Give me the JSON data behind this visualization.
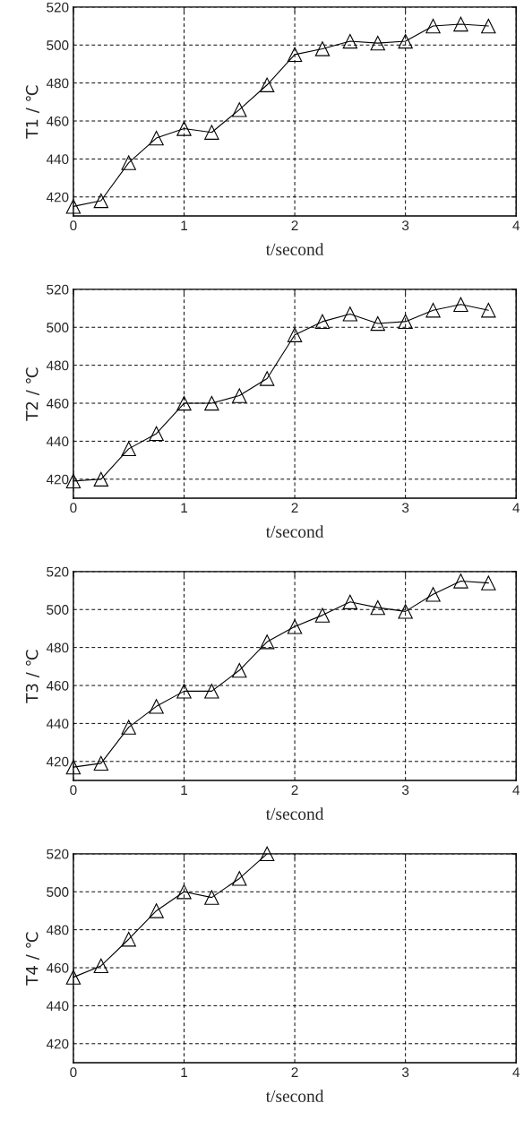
{
  "chart_data": [
    {
      "type": "line",
      "ylabel": "T1 / ℃",
      "xlabel": "t/second",
      "marker": "triangle",
      "line_style": "solid",
      "grid": true,
      "xlim": [
        0,
        4
      ],
      "xticks": [
        0,
        1,
        2,
        3,
        4
      ],
      "ylim": [
        410,
        520
      ],
      "yticks": [
        420,
        440,
        460,
        480,
        500,
        520
      ],
      "x": [
        0,
        0.25,
        0.5,
        0.75,
        1,
        1.25,
        1.5,
        1.75,
        2,
        2.25,
        2.5,
        2.75,
        3,
        3.25,
        3.5,
        3.75
      ],
      "series": [
        {
          "color": "#000000",
          "values": [
            415,
            418,
            438,
            451,
            456,
            454,
            466,
            479,
            495,
            498,
            502,
            501,
            502,
            510,
            511,
            510
          ]
        }
      ]
    },
    {
      "type": "line",
      "ylabel": "T2 / ℃",
      "xlabel": "t/second",
      "marker": "triangle",
      "line_style": "solid",
      "grid": true,
      "xlim": [
        0,
        4
      ],
      "xticks": [
        0,
        1,
        2,
        3,
        4
      ],
      "ylim": [
        410,
        520
      ],
      "yticks": [
        420,
        440,
        460,
        480,
        500,
        520
      ],
      "x": [
        0,
        0.25,
        0.5,
        0.75,
        1,
        1.25,
        1.5,
        1.75,
        2,
        2.25,
        2.5,
        2.75,
        3,
        3.25,
        3.5,
        3.75
      ],
      "series": [
        {
          "color": "#000000",
          "values": [
            419,
            420,
            436,
            444,
            460,
            460,
            464,
            473,
            496,
            503,
            507,
            502,
            503,
            509,
            512,
            509
          ]
        }
      ]
    },
    {
      "type": "line",
      "ylabel": "T3 / ℃",
      "xlabel": "t/second",
      "marker": "triangle",
      "line_style": "solid",
      "grid": true,
      "xlim": [
        0,
        4
      ],
      "xticks": [
        0,
        1,
        2,
        3,
        4
      ],
      "ylim": [
        410,
        520
      ],
      "yticks": [
        420,
        440,
        460,
        480,
        500,
        520
      ],
      "x": [
        0,
        0.25,
        0.5,
        0.75,
        1,
        1.25,
        1.5,
        1.75,
        2,
        2.25,
        2.5,
        2.75,
        3,
        3.25,
        3.5,
        3.75
      ],
      "series": [
        {
          "color": "#000000",
          "values": [
            417,
            419,
            438,
            449,
            457,
            457,
            468,
            483,
            491,
            497,
            504,
            501,
            499,
            508,
            515,
            514
          ]
        }
      ]
    },
    {
      "type": "line",
      "ylabel": "T4 / ℃",
      "xlabel": "t/second",
      "marker": "triangle",
      "line_style": "solid",
      "grid": true,
      "xlim": [
        0,
        4
      ],
      "xticks": [
        0,
        1,
        2,
        3,
        4
      ],
      "ylim": [
        410,
        520
      ],
      "yticks": [
        420,
        440,
        460,
        480,
        500,
        520
      ],
      "x": [
        0,
        0.25,
        0.5,
        0.75,
        1,
        1.25,
        1.5,
        1.75
      ],
      "series": [
        {
          "color": "#000000",
          "values": [
            455,
            461,
            475,
            490,
            500,
            497,
            507,
            520
          ]
        }
      ]
    }
  ]
}
